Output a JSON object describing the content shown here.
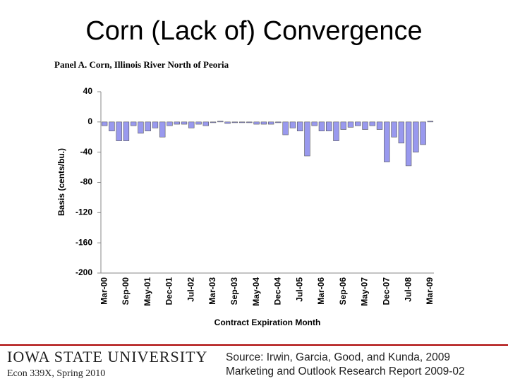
{
  "slide": {
    "title": "Corn (Lack of) Convergence",
    "university": "Iowa State University",
    "course": "Econ 339X, Spring 2010",
    "source": [
      "Source: Irwin, Garcia, Good, and Kunda, 2009",
      "Marketing and Outlook Research Report 2009-02"
    ]
  },
  "chart_data": {
    "type": "bar",
    "title": "Panel A.  Corn, Illinois River North of Peoria",
    "x_label": "Contract Expiration Month",
    "y_label": "Basis (cents/bu.)",
    "categories": [
      "Mar-00",
      null,
      null,
      "Sep-00",
      null,
      null,
      "May-01",
      null,
      null,
      "Dec-01",
      null,
      null,
      "Jul-02",
      null,
      null,
      "Mar-03",
      null,
      null,
      "Sep-03",
      null,
      null,
      "May-04",
      null,
      null,
      "Dec-04",
      null,
      null,
      "Jul-05",
      null,
      null,
      "Mar-06",
      null,
      null,
      "Sep-06",
      null,
      null,
      "May-07",
      null,
      null,
      "Dec-07",
      null,
      null,
      "Jul-08",
      null,
      null,
      "Mar-09"
    ],
    "values": [
      -5,
      -12,
      -25,
      -25,
      -5,
      -15,
      -12,
      -8,
      -20,
      -5,
      -3,
      -3,
      -8,
      -3,
      -5,
      -1,
      1,
      -2,
      -1,
      -1,
      -1,
      -3,
      -3,
      -3,
      -1,
      -17,
      -8,
      -12,
      -45,
      -5,
      -12,
      -12,
      -25,
      -10,
      -7,
      -5,
      -10,
      -5,
      -10,
      -53,
      -20,
      -28,
      -58,
      -40,
      -30,
      1
    ],
    "color": "#9999ee",
    "ylim": [
      -200,
      40
    ],
    "yticks": [
      40,
      0,
      -40,
      -80,
      -120,
      -160,
      -200
    ]
  }
}
